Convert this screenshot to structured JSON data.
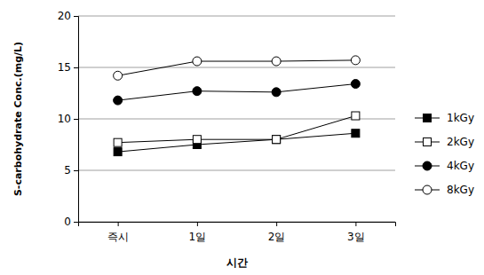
{
  "chart_data": {
    "type": "line",
    "x_label": "시간",
    "y_label": "S-carbohydrate Conc.(mg/L)",
    "categories": [
      "즉시",
      "1일",
      "2일",
      "3일"
    ],
    "series": [
      {
        "name": "1kGy",
        "color": "#000000",
        "marker": "square",
        "values": [
          6.8,
          7.5,
          8.0,
          8.6
        ]
      },
      {
        "name": "2kGy",
        "color": "#000000",
        "marker": "square-open",
        "values": [
          7.7,
          8.0,
          8.0,
          10.3
        ]
      },
      {
        "name": "4kGy",
        "color": "#000000",
        "marker": "circle",
        "values": [
          11.8,
          12.7,
          12.6,
          13.4
        ]
      },
      {
        "name": "8kGy",
        "color": "#000000",
        "marker": "circle-open",
        "values": [
          14.2,
          15.6,
          15.6,
          15.7
        ]
      }
    ],
    "ylim": [
      0,
      20
    ],
    "yticks": [
      0,
      5,
      10,
      15,
      20
    ],
    "grid": true,
    "legend": "right"
  }
}
